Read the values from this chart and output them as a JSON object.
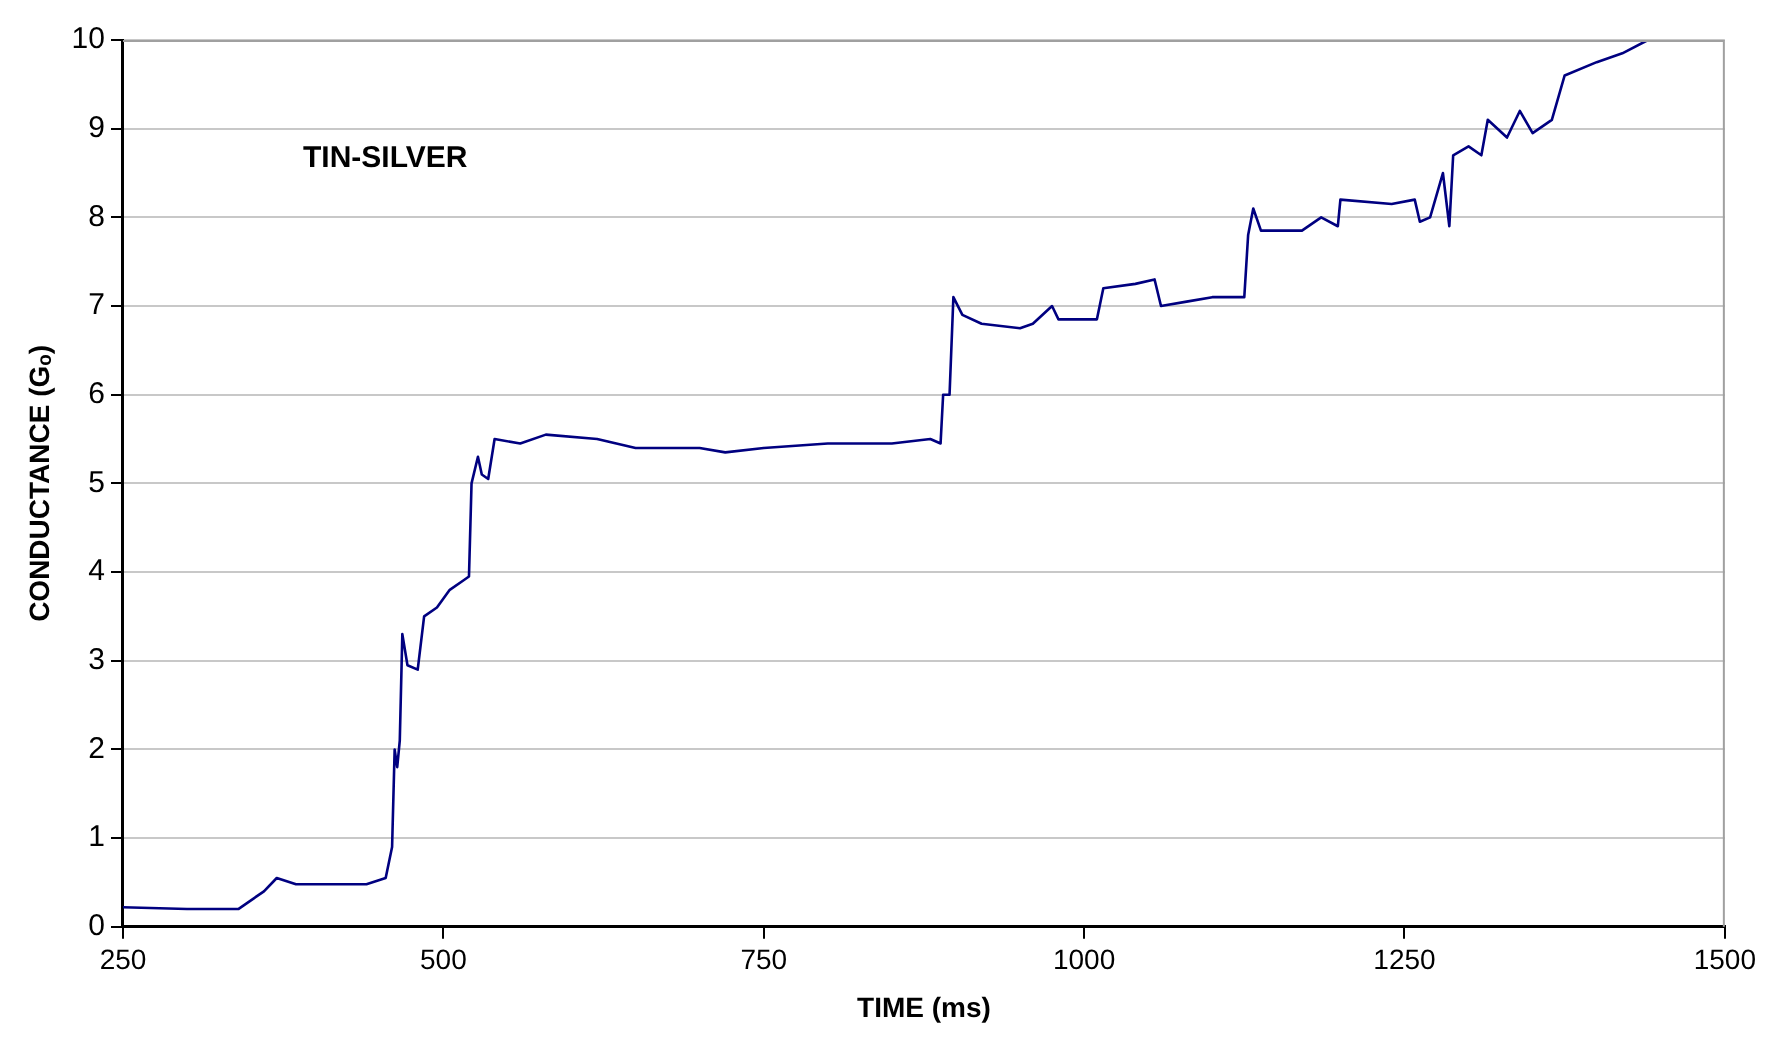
{
  "chart_data": {
    "type": "line",
    "xlabel": "TIME (ms)",
    "ylabel": "CONDUCTANCE (Gₒ)",
    "annotations": [
      "TIN-SILVER"
    ],
    "x": [
      250,
      300,
      340,
      360,
      370,
      385,
      440,
      455,
      460,
      462,
      464,
      466,
      468,
      472,
      480,
      485,
      495,
      505,
      515,
      520,
      522,
      527,
      530,
      535,
      540,
      560,
      580,
      620,
      650,
      700,
      720,
      750,
      800,
      850,
      880,
      888,
      890,
      895,
      898,
      905,
      920,
      950,
      960,
      975,
      980,
      1010,
      1015,
      1040,
      1055,
      1060,
      1080,
      1100,
      1125,
      1128,
      1132,
      1138,
      1170,
      1185,
      1198,
      1200,
      1240,
      1258,
      1262,
      1270,
      1280,
      1285,
      1288,
      1300,
      1310,
      1315,
      1330,
      1340,
      1350,
      1365,
      1375,
      1400,
      1420,
      1440
    ],
    "series": [
      {
        "color": "#000080",
        "values": [
          0.22,
          0.2,
          0.2,
          0.4,
          0.55,
          0.48,
          0.48,
          0.55,
          0.9,
          2.0,
          1.8,
          2.1,
          3.3,
          2.95,
          2.9,
          3.5,
          3.6,
          3.8,
          3.9,
          3.95,
          5.0,
          5.3,
          5.1,
          5.05,
          5.5,
          5.45,
          5.55,
          5.5,
          5.4,
          5.4,
          5.35,
          5.4,
          5.45,
          5.45,
          5.5,
          5.45,
          6.0,
          6.0,
          7.1,
          6.9,
          6.8,
          6.75,
          6.8,
          7.0,
          6.85,
          6.85,
          7.2,
          7.25,
          7.3,
          7.0,
          7.05,
          7.1,
          7.1,
          7.8,
          8.1,
          7.85,
          7.85,
          8.0,
          7.9,
          8.2,
          8.15,
          8.2,
          7.95,
          8.0,
          8.5,
          7.9,
          8.7,
          8.8,
          8.7,
          9.1,
          8.9,
          9.2,
          8.95,
          9.1,
          9.6,
          9.75,
          9.85,
          10.0
        ]
      }
    ],
    "xlim": [
      250,
      1500
    ],
    "xticks": [
      250,
      500,
      750,
      1000,
      1250,
      1500
    ],
    "ylim": [
      0,
      10
    ],
    "yticks": [
      0,
      1,
      2,
      3,
      4,
      5,
      6,
      7,
      8,
      9,
      10
    ],
    "grid": "y",
    "legend": false,
    "marker": "none",
    "line_style": "solid"
  }
}
